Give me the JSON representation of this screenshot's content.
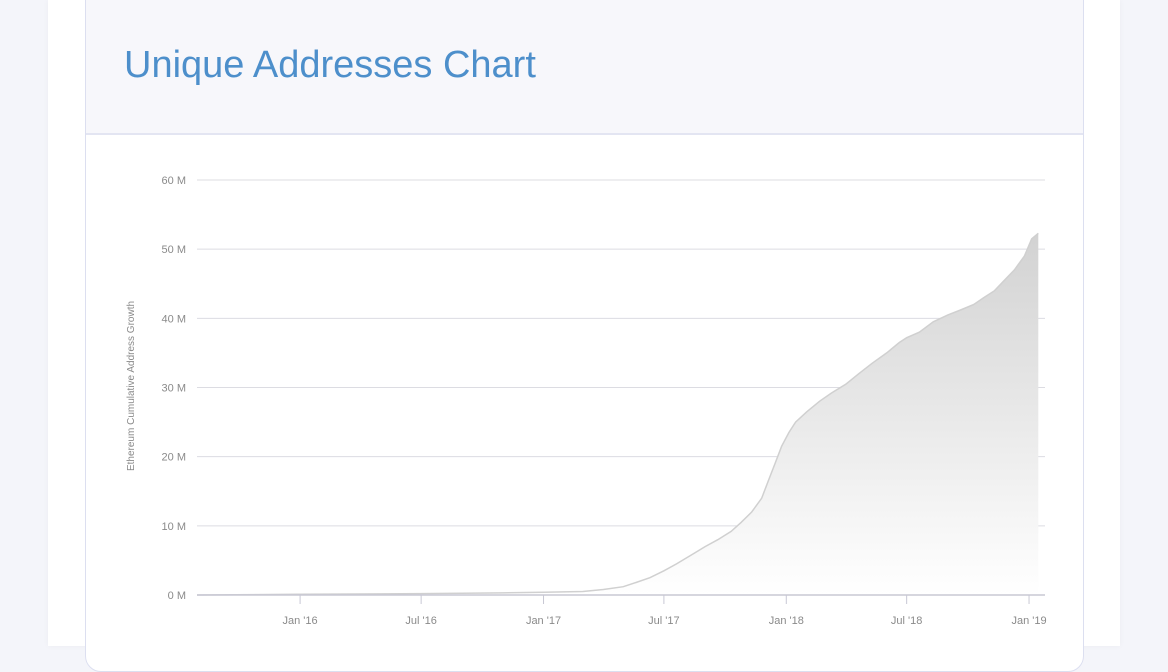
{
  "header": {
    "title": "Unique Addresses Chart"
  },
  "colors": {
    "title": "#4d8fcb",
    "grid": "#dcdce2",
    "area_top": "#d2d2d2",
    "area_bottom": "#ffffff",
    "line": "#d0d0d0"
  },
  "chart_data": {
    "type": "area",
    "title": "",
    "xlabel": "",
    "ylabel": "Ethereum Cumulative Address Growth",
    "ylim": [
      0,
      60
    ],
    "y_unit": "M",
    "yticks": [
      {
        "value": 0,
        "label": "0 M"
      },
      {
        "value": 10,
        "label": "10 M"
      },
      {
        "value": 20,
        "label": "20 M"
      },
      {
        "value": 30,
        "label": "30 M"
      },
      {
        "value": 40,
        "label": "40 M"
      },
      {
        "value": 50,
        "label": "50 M"
      },
      {
        "value": 60,
        "label": "60 M"
      }
    ],
    "xlim": [
      "2015-07-30",
      "2019-01-25"
    ],
    "xticks": [
      {
        "date": "2016-01-01",
        "label": "Jan '16"
      },
      {
        "date": "2016-07-01",
        "label": "Jul '16"
      },
      {
        "date": "2017-01-01",
        "label": "Jan '17"
      },
      {
        "date": "2017-07-01",
        "label": "Jul '17"
      },
      {
        "date": "2018-01-01",
        "label": "Jan '18"
      },
      {
        "date": "2018-07-01",
        "label": "Jul '18"
      },
      {
        "date": "2019-01-01",
        "label": "Jan '19"
      }
    ],
    "grid": true,
    "legend": "none",
    "series": [
      {
        "x": [
          "2015-07-30",
          "2016-01-01",
          "2016-07-01",
          "2016-11-01",
          "2017-01-01",
          "2017-03-01",
          "2017-04-01",
          "2017-05-01",
          "2017-05-20",
          "2017-06-10",
          "2017-07-01",
          "2017-07-20",
          "2017-08-15",
          "2017-09-01",
          "2017-09-20",
          "2017-10-10",
          "2017-10-25",
          "2017-11-10",
          "2017-11-25",
          "2017-12-05",
          "2017-12-15",
          "2017-12-25",
          "2018-01-05",
          "2018-01-15",
          "2018-02-01",
          "2018-02-20",
          "2018-03-10",
          "2018-04-01",
          "2018-04-20",
          "2018-05-10",
          "2018-06-01",
          "2018-06-20",
          "2018-07-01",
          "2018-07-20",
          "2018-08-10",
          "2018-09-01",
          "2018-09-20",
          "2018-10-10",
          "2018-10-25",
          "2018-11-10",
          "2018-11-25",
          "2018-12-10",
          "2018-12-25",
          "2019-01-05",
          "2019-01-15"
        ],
        "y": [
          0,
          0.1,
          0.2,
          0.3,
          0.4,
          0.5,
          0.8,
          1.2,
          1.8,
          2.5,
          3.5,
          4.5,
          6.0,
          7.0,
          8.0,
          9.2,
          10.5,
          12.0,
          14.0,
          16.5,
          19.0,
          21.5,
          23.5,
          25.0,
          26.5,
          28.0,
          29.2,
          30.5,
          32.0,
          33.5,
          35.0,
          36.5,
          37.2,
          38.0,
          39.5,
          40.5,
          41.2,
          42.0,
          43.0,
          44.0,
          45.5,
          47.0,
          49.0,
          51.5,
          52.3
        ]
      }
    ]
  }
}
